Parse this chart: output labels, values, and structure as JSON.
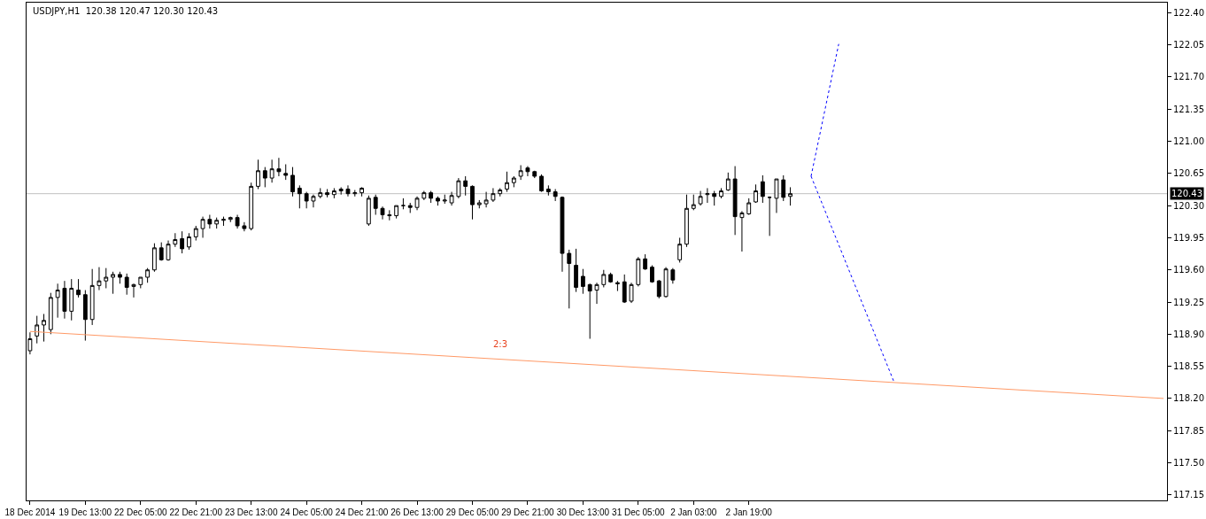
{
  "chart_data": {
    "type": "candlestick",
    "title": "USDJPY,H1  120.38 120.47 120.30 120.43",
    "categories": [
      "18 Dec 2014",
      null,
      null,
      null,
      null,
      null,
      null,
      null,
      "19 Dec 13:00",
      null,
      null,
      null,
      null,
      null,
      null,
      null,
      "22 Dec 05:00",
      null,
      null,
      null,
      null,
      null,
      null,
      null,
      "22 Dec 21:00",
      null,
      null,
      null,
      null,
      null,
      null,
      null,
      "23 Dec 13:00",
      null,
      null,
      null,
      null,
      null,
      null,
      null,
      "24 Dec 05:00",
      null,
      null,
      null,
      null,
      null,
      null,
      null,
      "24 Dec 21:00",
      null,
      null,
      null,
      null,
      null,
      null,
      null,
      "26 Dec 13:00",
      null,
      null,
      null,
      null,
      null,
      null,
      null,
      "29 Dec 05:00",
      null,
      null,
      null,
      null,
      null,
      null,
      null,
      "29 Dec 21:00",
      null,
      null,
      null,
      null,
      null,
      null,
      null,
      "30 Dec 13:00",
      null,
      null,
      null,
      null,
      null,
      null,
      null,
      "31 Dec 05:00",
      null,
      null,
      null,
      null,
      null,
      null,
      null,
      "2 Jan 03:00",
      null,
      null,
      null,
      null,
      null,
      null,
      null,
      "2 Jan 19:00",
      null,
      null,
      null,
      null,
      null,
      null,
      null,
      null,
      null,
      null,
      null,
      null,
      null,
      null,
      null,
      null,
      null,
      null,
      null,
      null,
      null,
      null,
      null,
      null,
      null,
      null,
      null,
      null,
      null,
      null,
      null,
      null,
      null,
      null,
      null,
      null,
      null,
      null,
      null,
      null,
      null,
      null,
      null,
      null,
      null,
      null,
      null,
      null,
      null,
      null,
      null,
      null,
      null,
      null,
      null,
      null,
      null,
      null,
      null,
      null
    ],
    "ohlc": [
      [
        118.72,
        118.92,
        118.68,
        118.85
      ],
      [
        118.88,
        119.1,
        118.8,
        119.0
      ],
      [
        119.0,
        119.12,
        118.82,
        119.05
      ],
      [
        118.95,
        119.35,
        118.9,
        119.3
      ],
      [
        119.3,
        119.45,
        119.08,
        119.38
      ],
      [
        119.4,
        119.48,
        119.07,
        119.15
      ],
      [
        119.15,
        119.5,
        119.05,
        119.4
      ],
      [
        119.38,
        119.5,
        119.3,
        119.33
      ],
      [
        119.33,
        119.38,
        118.83,
        119.06
      ],
      [
        119.06,
        119.61,
        119.0,
        119.43
      ],
      [
        119.43,
        119.63,
        119.38,
        119.48
      ],
      [
        119.48,
        119.62,
        119.4,
        119.52
      ],
      [
        119.52,
        119.58,
        119.34,
        119.55
      ],
      [
        119.55,
        119.58,
        119.45,
        119.52
      ],
      [
        119.52,
        119.56,
        119.33,
        119.41
      ],
      [
        119.42,
        119.45,
        119.3,
        119.44
      ],
      [
        119.44,
        119.52,
        119.4,
        119.52
      ],
      [
        119.52,
        119.62,
        119.46,
        119.6
      ],
      [
        119.6,
        119.89,
        119.58,
        119.84
      ],
      [
        119.84,
        119.9,
        119.7,
        119.71
      ],
      [
        119.71,
        119.92,
        119.7,
        119.88
      ],
      [
        119.88,
        120.0,
        119.85,
        119.93
      ],
      [
        119.94,
        120.02,
        119.78,
        119.83
      ],
      [
        119.85,
        120.0,
        119.82,
        119.96
      ],
      [
        119.96,
        120.08,
        119.92,
        120.05
      ],
      [
        120.05,
        120.18,
        119.95,
        120.15
      ],
      [
        120.15,
        120.2,
        120.05,
        120.1
      ],
      [
        120.1,
        120.17,
        120.05,
        120.14
      ],
      [
        120.14,
        120.18,
        120.08,
        120.15
      ],
      [
        120.15,
        120.18,
        120.12,
        120.17
      ],
      [
        120.17,
        120.2,
        120.05,
        120.08
      ],
      [
        120.08,
        120.12,
        120.02,
        120.05
      ],
      [
        120.05,
        120.55,
        120.03,
        120.51
      ],
      [
        120.51,
        120.8,
        120.48,
        120.68
      ],
      [
        120.68,
        120.72,
        120.5,
        120.6
      ],
      [
        120.6,
        120.8,
        120.55,
        120.7
      ],
      [
        120.7,
        120.82,
        120.62,
        120.67
      ],
      [
        120.65,
        120.75,
        120.58,
        120.63
      ],
      [
        120.63,
        120.72,
        120.4,
        120.45
      ],
      [
        120.49,
        120.52,
        120.27,
        120.43
      ],
      [
        120.43,
        120.45,
        120.27,
        120.35
      ],
      [
        120.35,
        120.42,
        120.28,
        120.4
      ],
      [
        120.4,
        120.49,
        120.38,
        120.44
      ],
      [
        120.44,
        120.48,
        120.39,
        120.42
      ],
      [
        120.42,
        120.49,
        120.38,
        120.46
      ],
      [
        120.46,
        120.5,
        120.42,
        120.48
      ],
      [
        120.48,
        120.52,
        120.4,
        120.43
      ],
      [
        120.43,
        120.47,
        120.4,
        120.44
      ],
      [
        120.44,
        120.5,
        120.4,
        120.49
      ],
      [
        120.1,
        120.41,
        120.08,
        120.38
      ],
      [
        120.39,
        120.42,
        120.2,
        120.27
      ],
      [
        120.27,
        120.29,
        120.15,
        120.2
      ],
      [
        120.2,
        120.25,
        120.14,
        120.19
      ],
      [
        120.19,
        120.3,
        120.16,
        120.3
      ],
      [
        120.3,
        120.38,
        120.26,
        120.3
      ],
      [
        120.3,
        120.33,
        120.22,
        120.28
      ],
      [
        120.28,
        120.4,
        120.25,
        120.38
      ],
      [
        120.38,
        120.46,
        120.36,
        120.44
      ],
      [
        120.44,
        120.46,
        120.33,
        120.38
      ],
      [
        120.38,
        120.4,
        120.3,
        120.35
      ],
      [
        120.35,
        120.42,
        120.32,
        120.36
      ],
      [
        120.33,
        120.45,
        120.3,
        120.41
      ],
      [
        120.4,
        120.6,
        120.38,
        120.57
      ],
      [
        120.57,
        120.62,
        120.41,
        120.51
      ],
      [
        120.51,
        120.52,
        120.15,
        120.31
      ],
      [
        120.31,
        120.36,
        120.27,
        120.33
      ],
      [
        120.32,
        120.45,
        120.28,
        120.36
      ],
      [
        120.36,
        120.49,
        120.34,
        120.43
      ],
      [
        120.43,
        120.49,
        120.4,
        120.47
      ],
      [
        120.48,
        120.67,
        120.45,
        120.55
      ],
      [
        120.55,
        120.62,
        120.5,
        120.6
      ],
      [
        120.62,
        120.74,
        120.58,
        120.68
      ],
      [
        120.71,
        120.73,
        120.62,
        120.67
      ],
      [
        120.67,
        120.68,
        120.6,
        120.62
      ],
      [
        120.62,
        120.64,
        120.45,
        120.46
      ],
      [
        120.48,
        120.52,
        120.41,
        120.45
      ],
      [
        120.45,
        120.48,
        120.35,
        120.4
      ],
      [
        120.39,
        120.4,
        119.58,
        119.78
      ],
      [
        119.78,
        119.82,
        119.18,
        119.67
      ],
      [
        119.65,
        119.83,
        119.36,
        119.41
      ],
      [
        119.53,
        119.61,
        119.34,
        119.42
      ],
      [
        119.44,
        119.45,
        118.85,
        119.37
      ],
      [
        119.38,
        119.46,
        119.23,
        119.44
      ],
      [
        119.44,
        119.6,
        119.41,
        119.55
      ],
      [
        119.55,
        119.57,
        119.46,
        119.47
      ],
      [
        119.46,
        119.48,
        119.37,
        119.45
      ],
      [
        119.47,
        119.55,
        119.24,
        119.25
      ],
      [
        119.26,
        119.46,
        119.24,
        119.44
      ],
      [
        119.44,
        119.74,
        119.42,
        119.72
      ],
      [
        119.72,
        119.77,
        119.6,
        119.61
      ],
      [
        119.63,
        119.65,
        119.46,
        119.47
      ],
      [
        119.48,
        119.49,
        119.29,
        119.31
      ],
      [
        119.31,
        119.63,
        119.3,
        119.61
      ],
      [
        119.6,
        119.62,
        119.45,
        119.49
      ],
      [
        119.71,
        119.95,
        119.68,
        119.88
      ],
      [
        119.88,
        120.42,
        119.85,
        120.27
      ],
      [
        120.27,
        120.42,
        120.25,
        120.31
      ],
      [
        120.32,
        120.46,
        120.3,
        120.4
      ],
      [
        120.42,
        120.49,
        120.33,
        120.43
      ],
      [
        120.43,
        120.46,
        120.3,
        120.4
      ],
      [
        120.4,
        120.49,
        120.38,
        120.46
      ],
      [
        120.47,
        120.66,
        120.46,
        120.59
      ],
      [
        120.59,
        120.73,
        119.98,
        120.18
      ],
      [
        120.17,
        120.24,
        119.8,
        120.22
      ],
      [
        120.21,
        120.38,
        120.2,
        120.33
      ],
      [
        120.34,
        120.53,
        120.33,
        120.46
      ],
      [
        120.56,
        120.63,
        120.33,
        120.4
      ],
      [
        120.39,
        120.4,
        119.97,
        120.39
      ],
      [
        120.38,
        120.59,
        120.22,
        120.59
      ],
      [
        120.58,
        120.63,
        120.35,
        120.39
      ],
      [
        120.4,
        120.5,
        120.3,
        120.43
      ],
      null,
      null,
      null,
      null,
      null,
      null,
      null,
      null,
      null,
      null,
      null,
      null,
      null,
      null,
      null,
      null,
      null,
      null,
      null,
      null,
      null,
      null,
      null,
      null,
      null,
      null,
      null,
      null,
      null,
      null,
      null,
      null,
      null,
      null,
      null,
      null,
      null,
      null,
      null,
      null,
      null,
      null,
      null,
      null,
      null,
      null,
      null,
      null,
      null,
      null,
      null,
      null,
      null,
      null
    ],
    "color": "#000000",
    "series": [
      {
        "type": "line",
        "color": "#ff9966",
        "values": [
          118.93,
          null,
          null,
          null,
          null,
          null,
          null,
          null,
          null,
          null,
          null,
          null,
          null,
          null,
          null,
          null,
          null,
          null,
          null,
          null,
          null,
          null,
          null,
          null,
          null,
          null,
          null,
          null,
          null,
          null,
          null,
          null,
          null,
          null,
          null,
          null,
          null,
          null,
          null,
          null,
          null,
          null,
          null,
          null,
          null,
          null,
          null,
          null,
          null,
          null,
          null,
          null,
          null,
          null,
          null,
          null,
          null,
          null,
          null,
          null,
          null,
          null,
          null,
          null,
          null,
          null,
          null,
          null,
          null,
          null,
          null,
          null,
          null,
          null,
          null,
          null,
          null,
          null,
          null,
          null,
          null,
          null,
          null,
          null,
          null,
          null,
          null,
          null,
          null,
          null,
          null,
          null,
          null,
          null,
          null,
          null,
          null,
          null,
          null,
          null,
          null,
          null,
          null,
          null,
          null,
          null,
          null,
          null,
          null,
          null,
          null,
          null,
          null,
          null,
          null,
          null,
          null,
          null,
          null,
          null,
          null,
          null,
          null,
          null,
          null,
          null,
          null,
          null,
          null,
          null,
          null,
          null,
          null,
          null,
          null,
          null,
          null,
          null,
          null,
          null,
          null,
          null,
          null,
          null,
          null,
          null,
          null,
          null,
          null,
          null,
          null,
          null,
          null,
          null,
          null,
          null,
          null,
          null,
          null,
          null,
          null,
          null,
          null,
          null,
          118.2
        ]
      },
      {
        "type": "line",
        "color": "#0000ff",
        "line_style": "dotted",
        "values": [
          null,
          null,
          null,
          null,
          null,
          null,
          null,
          null,
          null,
          null,
          null,
          null,
          null,
          null,
          null,
          null,
          null,
          null,
          null,
          null,
          null,
          null,
          null,
          null,
          null,
          null,
          null,
          null,
          null,
          null,
          null,
          null,
          null,
          null,
          null,
          null,
          null,
          null,
          null,
          null,
          null,
          null,
          null,
          null,
          null,
          null,
          null,
          null,
          null,
          null,
          null,
          null,
          null,
          null,
          null,
          null,
          null,
          null,
          null,
          null,
          null,
          null,
          null,
          null,
          null,
          null,
          null,
          null,
          null,
          null,
          null,
          null,
          null,
          null,
          null,
          null,
          null,
          null,
          null,
          null,
          null,
          null,
          null,
          null,
          null,
          null,
          null,
          null,
          null,
          null,
          null,
          null,
          null,
          null,
          null,
          null,
          null,
          null,
          null,
          null,
          null,
          null,
          null,
          null,
          null,
          null,
          null,
          null,
          null,
          null,
          null,
          null,
          null,
          120.62,
          null,
          null,
          null,
          122.06,
          null,
          null,
          null,
          null,
          null,
          null,
          null,
          null,
          null,
          null,
          null,
          null,
          null,
          null,
          null,
          null,
          null,
          null,
          null,
          null,
          null,
          null,
          null,
          null,
          null,
          null,
          null,
          null,
          null,
          null,
          null,
          null,
          null,
          null,
          null,
          null,
          null,
          null,
          null,
          null,
          null,
          null,
          null,
          null,
          null,
          null,
          null
        ]
      },
      {
        "type": "line",
        "color": "#0000ff",
        "line_style": "dotted",
        "values": [
          null,
          null,
          null,
          null,
          null,
          null,
          null,
          null,
          null,
          null,
          null,
          null,
          null,
          null,
          null,
          null,
          null,
          null,
          null,
          null,
          null,
          null,
          null,
          null,
          null,
          null,
          null,
          null,
          null,
          null,
          null,
          null,
          null,
          null,
          null,
          null,
          null,
          null,
          null,
          null,
          null,
          null,
          null,
          null,
          null,
          null,
          null,
          null,
          null,
          null,
          null,
          null,
          null,
          null,
          null,
          null,
          null,
          null,
          null,
          null,
          null,
          null,
          null,
          null,
          null,
          null,
          null,
          null,
          null,
          null,
          null,
          null,
          null,
          null,
          null,
          null,
          null,
          null,
          null,
          null,
          null,
          null,
          null,
          null,
          null,
          null,
          null,
          null,
          null,
          null,
          null,
          null,
          null,
          null,
          null,
          null,
          null,
          null,
          null,
          null,
          null,
          null,
          null,
          null,
          null,
          null,
          null,
          null,
          null,
          null,
          null,
          null,
          null,
          120.62,
          null,
          null,
          null,
          null,
          null,
          null,
          null,
          null,
          null,
          null,
          null,
          118.38,
          null,
          null,
          null,
          null,
          null,
          null,
          null,
          null,
          null,
          null,
          null,
          null,
          null,
          null,
          null,
          null,
          null,
          null,
          null,
          null,
          null,
          null,
          null,
          null,
          null,
          null,
          null,
          null,
          null,
          null,
          null,
          null,
          null,
          null,
          null,
          null,
          null,
          null,
          null
        ]
      }
    ],
    "ylim": [
      117.09,
      122.51
    ],
    "yticks": [
      {
        "value": 117.15,
        "label": "117.15"
      },
      {
        "value": 117.5,
        "label": "117.50"
      },
      {
        "value": 117.85,
        "label": "117.85"
      },
      {
        "value": 118.2,
        "label": "118.20"
      },
      {
        "value": 118.55,
        "label": "118.55"
      },
      {
        "value": 118.9,
        "label": "118.90"
      },
      {
        "value": 119.25,
        "label": "119.25"
      },
      {
        "value": 119.6,
        "label": "119.60"
      },
      {
        "value": 119.95,
        "label": "119.95"
      },
      {
        "value": 120.3,
        "label": "120.30"
      },
      {
        "value": 120.65,
        "label": "120.65"
      },
      {
        "value": 121.0,
        "label": "121.00"
      },
      {
        "value": 121.35,
        "label": "121.35"
      },
      {
        "value": 121.7,
        "label": "121.70"
      },
      {
        "value": 122.05,
        "label": "122.05"
      },
      {
        "value": 122.4,
        "label": "122.40"
      }
    ],
    "ref_lines": [
      {
        "axis": "y",
        "value": 120.43,
        "label": "120.43",
        "color": "#c0c0c0"
      }
    ],
    "annotations": [
      "2:3"
    ]
  }
}
